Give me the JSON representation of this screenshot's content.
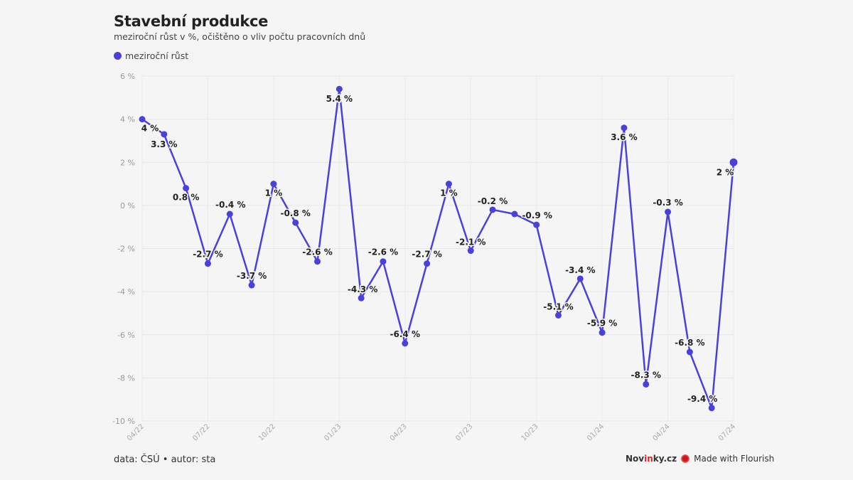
{
  "title": "Stavební produkce",
  "subtitle": "meziroční růst v %, očištěno o vliv počtu pracovních dnů",
  "footer": "data: ČSÚ • autor: sta",
  "brand": {
    "name_a": "Nov",
    "name_b": "in",
    "name_c": "ky.cz",
    "flourish": "Made with Flourish"
  },
  "colors": {
    "series": "#4a40dc",
    "background": "#f5f5f5",
    "flourish_icon": "#d0181c"
  },
  "chart_data": {
    "type": "line",
    "title": "Stavební produkce",
    "xlabel": "",
    "ylabel": "",
    "ylim": [
      -10,
      6
    ],
    "yticks": [
      6,
      4,
      2,
      0,
      -2,
      -4,
      -6,
      -8,
      -10
    ],
    "ytick_labels": [
      "6 %",
      "4 %",
      "2 %",
      "0 %",
      "-2 %",
      "-4 %",
      "-6 %",
      "-8 %",
      "-10 %"
    ],
    "xtick_labels": [
      "04/22",
      "07/22",
      "10/22",
      "01/23",
      "04/23",
      "07/23",
      "10/23",
      "01/24",
      "04/24",
      "07/24"
    ],
    "grid": true,
    "legend_position": "top-left",
    "x": [
      "04/22",
      "05/22",
      "06/22",
      "07/22",
      "08/22",
      "09/22",
      "10/22",
      "11/22",
      "12/22",
      "01/23",
      "02/23",
      "03/23",
      "04/23",
      "05/23",
      "06/23",
      "07/23",
      "08/23",
      "09/23",
      "10/23",
      "11/23",
      "12/23",
      "01/24",
      "02/24",
      "03/24",
      "04/24",
      "05/24",
      "06/24",
      "07/24"
    ],
    "series": [
      {
        "name": "meziroční růst",
        "values": [
          4,
          3.3,
          0.8,
          -2.7,
          -0.4,
          -3.7,
          1,
          -0.8,
          -2.6,
          5.4,
          -4.3,
          -2.6,
          -6.4,
          -2.7,
          1,
          -2.1,
          -0.2,
          -0.4,
          -0.9,
          -5.1,
          -3.4,
          -5.9,
          3.6,
          -8.3,
          -0.3,
          -6.8,
          -9.4,
          2
        ],
        "labels": [
          "4 %",
          "3.3 %",
          "0.8 %",
          "-2.7 %",
          "-0.4 %",
          "-3.7 %",
          "1 %",
          "-0.8 %",
          "-2.6 %",
          "5.4 %",
          "-4.3 %",
          "-2.6 %",
          "-6.4 %",
          "-2.7 %",
          "1 %",
          "-2.1 %",
          "-0.2 %",
          "",
          "-0.9 %",
          "-5.1 %",
          "-3.4 %",
          "-5.9 %",
          "3.6 %",
          "-8.3 %",
          "-0.3 %",
          "-6.8 %",
          "-9.4 %",
          "2 %"
        ]
      }
    ]
  }
}
